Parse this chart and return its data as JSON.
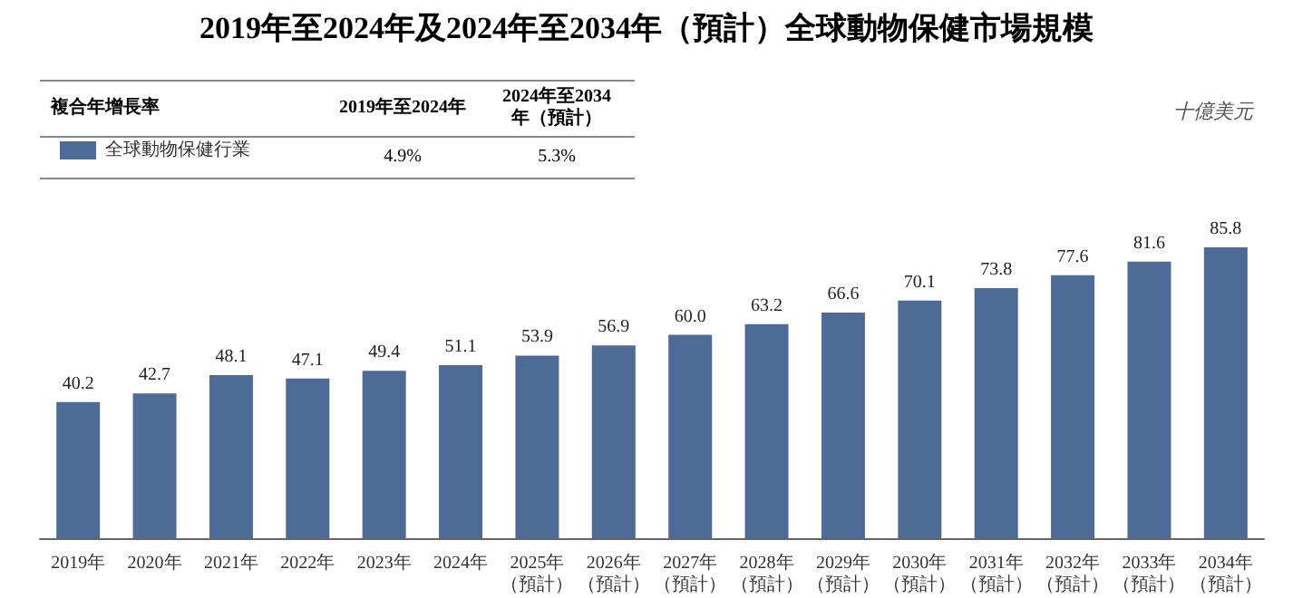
{
  "chart_data": {
    "type": "bar",
    "title": "2019年至2024年及2024年至2034年（預計）全球動物保健市場規模",
    "categories": [
      "2019年",
      "2020年",
      "2021年",
      "2022年",
      "2023年",
      "2024年",
      "2025年（預計）",
      "2026年（預計）",
      "2027年（預計）",
      "2028年（預計）",
      "2029年（預計）",
      "2030年（預計）",
      "2031年（預計）",
      "2032年（預計）",
      "2033年（預計）",
      "2034年（預計）"
    ],
    "series": [
      {
        "name": "全球動物保健行業",
        "color": "#4e6a96",
        "values": [
          40.2,
          42.7,
          48.1,
          47.1,
          49.4,
          51.1,
          53.9,
          56.9,
          60.0,
          63.2,
          66.6,
          70.1,
          73.8,
          77.6,
          81.6,
          85.8
        ],
        "value_labels": [
          "40.2",
          "42.7",
          "48.1",
          "47.1",
          "49.4",
          "51.1",
          "53.9",
          "56.9",
          "60.0",
          "63.2",
          "66.6",
          "70.1",
          "73.8",
          "77.6",
          "81.6",
          "85.8"
        ]
      }
    ],
    "annotations": [
      "複合年增長率",
      "2019年至2024年",
      "2024年至2034年（預計）",
      "4.9%",
      "5.3%",
      "十億美元"
    ],
    "legend": "top left",
    "grid": false,
    "tick_labels": "x"
  }
}
